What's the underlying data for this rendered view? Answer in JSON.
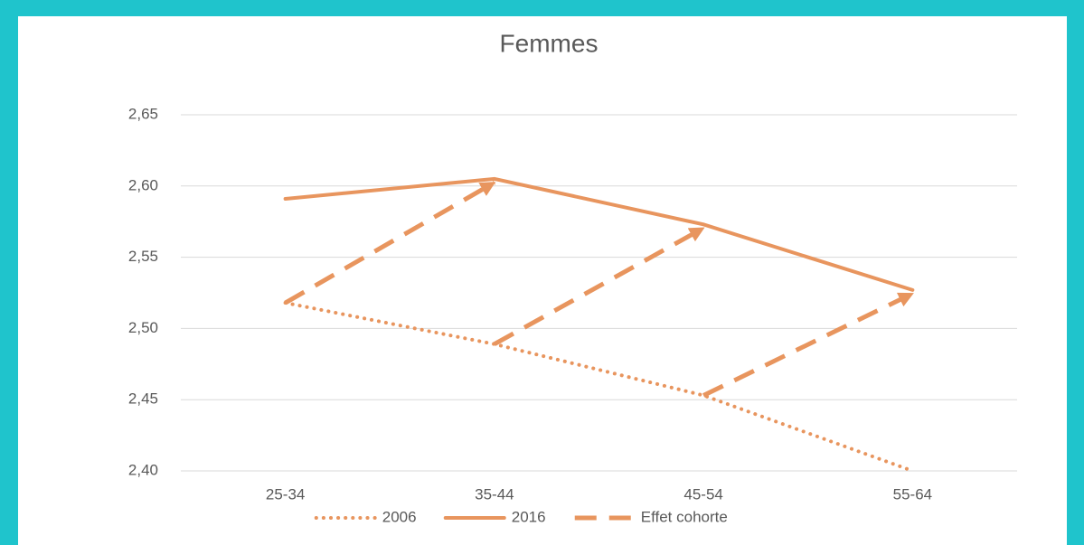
{
  "chart_data": {
    "type": "line",
    "title": "Femmes",
    "categories": [
      "25-34",
      "35-44",
      "45-54",
      "55-64"
    ],
    "series": [
      {
        "name": "2006",
        "color": "#e8955e",
        "style": "dotted",
        "values": [
          2.518,
          2.489,
          2.453,
          2.4
        ]
      },
      {
        "name": "2016",
        "color": "#e8955e",
        "style": "solid",
        "values": [
          2.591,
          2.605,
          2.573,
          2.527
        ]
      },
      {
        "name": "Effet cohorte",
        "color": "#e8955e",
        "style": "dashed-arrow"
      }
    ],
    "ylim": [
      2.4,
      2.65
    ],
    "yticks": [
      {
        "value": 2.4,
        "label": "2,40"
      },
      {
        "value": 2.45,
        "label": "2,45"
      },
      {
        "value": 2.5,
        "label": "2,50"
      },
      {
        "value": 2.55,
        "label": "2,55"
      },
      {
        "value": 2.6,
        "label": "2,60"
      },
      {
        "value": 2.65,
        "label": "2,65"
      }
    ],
    "grid": true,
    "legend": "bottom"
  }
}
